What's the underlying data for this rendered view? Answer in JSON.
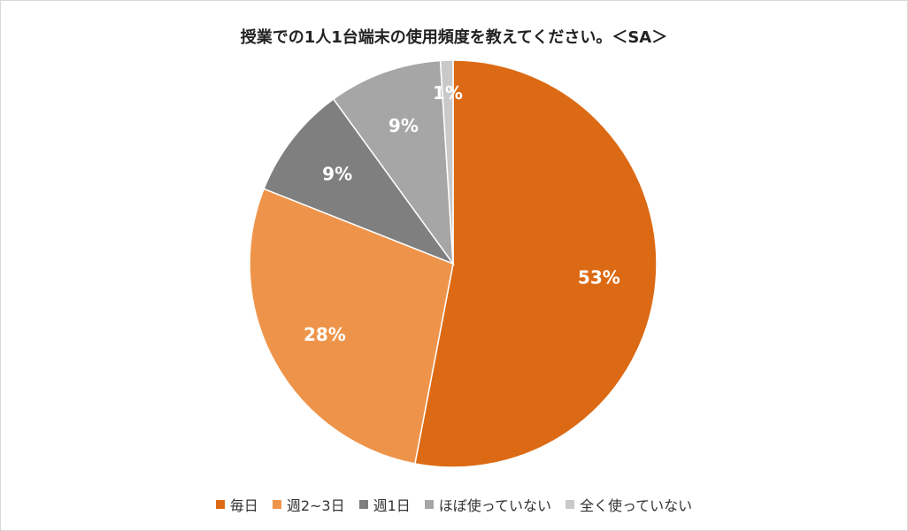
{
  "chart_data": {
    "type": "pie",
    "title": "授業での1人1台端末の使用頻度を教えてください。＜SA＞",
    "categories": [
      "毎日",
      "週2~3日",
      "週1日",
      "ほぼ使っていない",
      "全く使っていない"
    ],
    "values": [
      53,
      28,
      9,
      9,
      1
    ],
    "labels": [
      "53%",
      "28%",
      "9%",
      "9%",
      "1%"
    ],
    "colors": [
      "#dc6a14",
      "#ee944a",
      "#7f7f7f",
      "#a6a6a6",
      "#c9c9c9"
    ],
    "legend_position": "bottom"
  }
}
